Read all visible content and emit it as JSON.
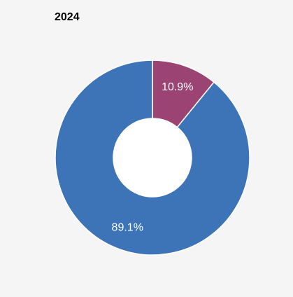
{
  "chart_data": {
    "type": "pie",
    "title": "2024",
    "slices": [
      {
        "label": "10.9%",
        "value": 10.9,
        "color": "#9b4372"
      },
      {
        "label": "89.1%",
        "value": 89.1,
        "color": "#3d74b7"
      }
    ],
    "hole": true,
    "legend": "none"
  },
  "colors": {
    "background": "#f5f5f5",
    "slice_border": "#ffffff",
    "hole": "#ffffff"
  }
}
